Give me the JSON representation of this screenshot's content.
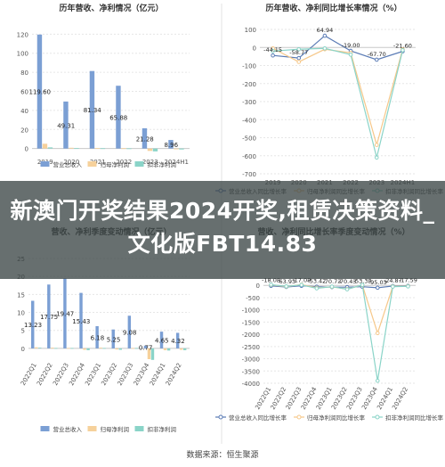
{
  "banner_text": "新澳门开奖结果2024开奖,租赁决策资料_文化版FBT14.83",
  "source": "数据来源：恒生聚源",
  "chart_data": [
    {
      "type": "bar",
      "title": "历年营收、净利情况（亿元）",
      "categories": [
        "2019",
        "2020",
        "2021",
        "2022",
        "2023",
        "2024H1"
      ],
      "yticks": [
        0,
        20,
        40,
        60,
        80,
        100,
        120
      ],
      "ylim": [
        -5,
        125
      ],
      "series": [
        {
          "name": "营业总收入",
          "color": "#7b9fd4",
          "values": [
            119.6,
            49.31,
            81.34,
            65.88,
            21.28,
            8.96
          ],
          "labels": [
            "119.60",
            "49.31",
            "81.34",
            "65.88",
            "21.28",
            "8.96"
          ]
        },
        {
          "name": "归母净利润",
          "color": "#f6d19b",
          "values": [
            5,
            0.8,
            0.5,
            0.3,
            -2.5,
            -0.8
          ],
          "labels": []
        },
        {
          "name": "扣非净利润",
          "color": "#8ad4c8",
          "values": [
            1.2,
            0.4,
            0.3,
            0.2,
            -3,
            -1
          ],
          "labels": []
        }
      ]
    },
    {
      "type": "line",
      "title": "历年营收、净利同比增长率情况（%）",
      "categories": [
        "2019",
        "2020",
        "2021",
        "2022",
        "2023",
        "2024H1"
      ],
      "yticks": [
        100,
        0,
        -100,
        -200,
        -300,
        -400,
        -500,
        -600,
        -700
      ],
      "ylim": [
        -700,
        100
      ],
      "series": [
        {
          "name": "营业总收入同比增长率",
          "color": "#5a7bb5",
          "values": [
            -44.15,
            -58.77,
            64.94,
            -19.0,
            -67.7,
            -21.6
          ],
          "labels": [
            "-44.15",
            "-58.77",
            "64.94",
            "-19.00",
            "-67.70",
            "-21.60"
          ]
        },
        {
          "name": "归母净利润同比增长率",
          "color": "#f6c88a",
          "values": [
            -5,
            -80,
            -10,
            -30,
            -540,
            -10
          ],
          "labels": []
        },
        {
          "name": "扣非净利润同比增长率",
          "color": "#8ad4c8",
          "values": [
            -20,
            -10,
            -5,
            -40,
            -610,
            -15
          ],
          "labels": []
        }
      ]
    },
    {
      "type": "bar",
      "title": "营收、净利季度变动情况（亿元）",
      "categories": [
        "2022Q1",
        "2022Q2",
        "2022Q3",
        "2022Q4",
        "2023Q1",
        "2023Q2",
        "2023Q3",
        "2023Q4",
        "2024Q1",
        "2024Q2"
      ],
      "yticks": [
        0,
        5,
        10,
        15,
        20,
        25
      ],
      "ylim": [
        -3,
        25
      ],
      "series": [
        {
          "name": "营业总收入",
          "color": "#7b9fd4",
          "values": [
            13.23,
            17.75,
            19.47,
            15.43,
            6.18,
            5.25,
            9.08,
            0.77,
            4.65,
            4.32
          ],
          "labels": [
            "13.23",
            "17.75",
            "19.47",
            "15.43",
            "6.18",
            "5.25",
            "9.08",
            "0.77",
            "4.65",
            "4.32"
          ]
        },
        {
          "name": "归母净利润",
          "color": "#f6d19b",
          "values": [
            0.3,
            0.2,
            0.1,
            -0.4,
            0.2,
            -0.3,
            0.1,
            -3,
            -0.5,
            -0.4
          ],
          "labels": []
        },
        {
          "name": "扣非净利润",
          "color": "#8ad4c8",
          "values": [
            0.2,
            0.1,
            0.1,
            -0.5,
            0.1,
            -0.4,
            0.1,
            -3.2,
            -0.6,
            -0.5
          ],
          "labels": []
        }
      ]
    },
    {
      "type": "line",
      "title": "营收、净利同比增长率季度变动情况（%）",
      "categories": [
        "2022Q1",
        "2022Q2",
        "2022Q3",
        "2022Q4",
        "2023Q1",
        "2023Q2",
        "2023Q3",
        "2023Q4",
        "2024Q1",
        "2024Q2"
      ],
      "yticks": [
        0,
        -500,
        -1000,
        -1500,
        -2000,
        -2500,
        -3000,
        -3500,
        -4000
      ],
      "ylim": [
        -4000,
        300
      ],
      "series": [
        {
          "name": "营业总收入同比增长率",
          "color": "#5a7bb5",
          "values": [
            -18.08,
            -63.93,
            -17.08,
            -53.42,
            -70.73,
            -70.43,
            -53.38,
            -95.03,
            -24.87,
            -17.59
          ],
          "labels": [
            "-18.08",
            "-63.93",
            "-17.08",
            "-53.42",
            "-70.73",
            "-70.43",
            "-53.38",
            "-95.03",
            "-24.87",
            "-17.59"
          ]
        },
        {
          "name": "归母净利润同比增长率",
          "color": "#f6c88a",
          "values": [
            20,
            -50,
            30,
            -100,
            -60,
            -150,
            10,
            -1950,
            -40,
            -30
          ],
          "labels": []
        },
        {
          "name": "扣非净利润同比增长率",
          "color": "#8ad4c8",
          "values": [
            30,
            -40,
            20,
            -120,
            -50,
            -160,
            20,
            -3900,
            -50,
            -40
          ],
          "labels": []
        }
      ]
    }
  ]
}
